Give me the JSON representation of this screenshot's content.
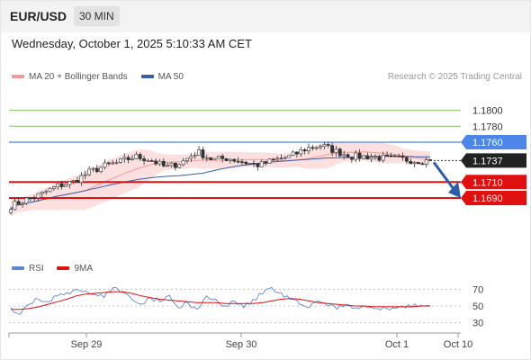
{
  "header": {
    "symbol": "EUR/USD",
    "timeframe": "30 MIN"
  },
  "datetime": "Wednesday, October 1, 2025 5:10:33 AM CET",
  "legend": [
    {
      "label": "MA 20 + Bollinger Bands",
      "color": "#f39a9a"
    },
    {
      "label": "MA 50",
      "color": "#3a5fa8"
    }
  ],
  "research": "Research © 2025 Trading Central",
  "rsi_legend": [
    {
      "label": "RSI",
      "color": "#5b86d6"
    },
    {
      "label": "9MA",
      "color": "#e01010"
    }
  ],
  "colors": {
    "up": "#3e9b3e",
    "down": "#d43c3c",
    "resistance": "#4d86e8",
    "support": "#e01010",
    "target": "#84c46c",
    "arrow": "#2a5ea8",
    "candle": "#333333"
  },
  "chart_data": [
    {
      "type": "candlestick",
      "ylim": [
        1.162,
        1.183
      ],
      "x_tick_labels": [
        "Sep 29",
        "Sep 30",
        "Oct 1",
        "Oct 10"
      ],
      "current_price": 1.1737,
      "levels": [
        {
          "value": 1.18,
          "label": "1.1800",
          "kind": "target"
        },
        {
          "value": 1.178,
          "label": "1.1780",
          "kind": "target"
        },
        {
          "value": 1.176,
          "label": "1.1760",
          "kind": "resistance"
        },
        {
          "value": 1.171,
          "label": "1.1710",
          "kind": "support"
        },
        {
          "value": 1.169,
          "label": "1.1690",
          "kind": "support"
        }
      ],
      "forecast": {
        "from": 1.1737,
        "to": 1.169
      },
      "close_anchors": [
        1.168,
        1.1688,
        1.1695,
        1.1705,
        1.171,
        1.1722,
        1.173,
        1.1735,
        1.1742,
        1.1738,
        1.1728,
        1.1735,
        1.1748,
        1.1738,
        1.174,
        1.1735,
        1.1731,
        1.1738,
        1.1742,
        1.1752,
        1.1756,
        1.1748,
        1.1742,
        1.1742,
        1.174,
        1.1739,
        1.1737,
        1.1737
      ]
    },
    {
      "type": "line",
      "ylim": [
        20,
        80
      ],
      "y_tick_labels": [
        "70",
        "50",
        "30"
      ],
      "y_ticks": [
        70,
        50,
        30
      ],
      "series": [
        {
          "name": "RSI",
          "values": [
            48,
            40,
            52,
            58,
            55,
            62,
            66,
            70,
            68,
            64,
            60,
            72,
            66,
            58,
            52,
            60,
            55,
            63,
            48,
            54,
            46,
            62,
            58,
            50,
            56,
            48,
            58,
            64,
            72,
            66,
            58,
            52,
            48,
            56,
            50,
            46,
            52,
            48,
            50,
            47,
            49,
            48,
            50,
            49,
            51,
            50
          ]
        },
        {
          "name": "9MA",
          "values": [
            46,
            46,
            47,
            49,
            52,
            55,
            58,
            62,
            64,
            65,
            66,
            67,
            67,
            65,
            62,
            60,
            58,
            57,
            56,
            55,
            54,
            54,
            54,
            53,
            53,
            53,
            53,
            54,
            56,
            58,
            59,
            58,
            56,
            54,
            53,
            52,
            51,
            50,
            50,
            49,
            49,
            49,
            49,
            49,
            50,
            50
          ]
        }
      ]
    }
  ]
}
